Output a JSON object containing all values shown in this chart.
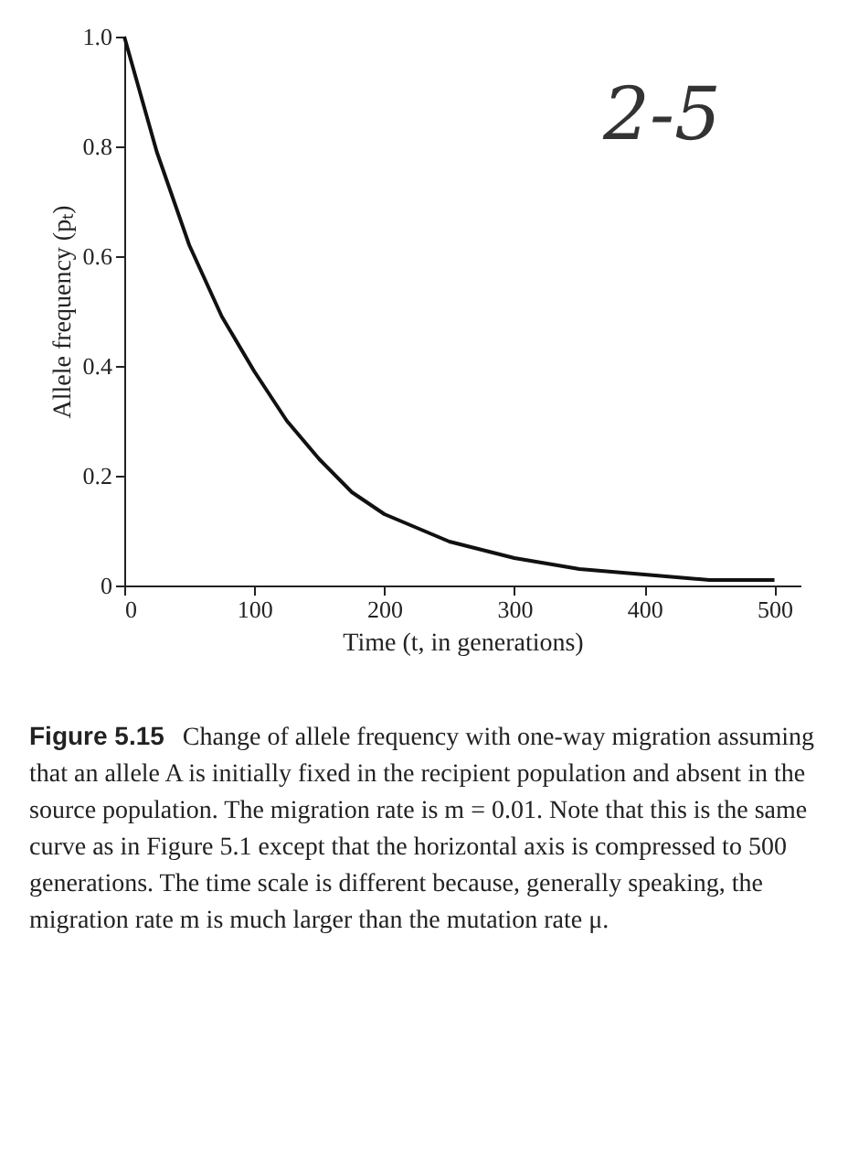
{
  "chart_data": {
    "type": "line",
    "xlabel": "Time (t, in generations)",
    "ylabel": "Allele frequency (pₜ)",
    "x": [
      0,
      25,
      50,
      75,
      100,
      125,
      150,
      175,
      200,
      250,
      300,
      350,
      400,
      450,
      500
    ],
    "series": [
      {
        "color": "#111111",
        "values": [
          1.0,
          0.79,
          0.62,
          0.49,
          0.39,
          0.3,
          0.23,
          0.17,
          0.13,
          0.08,
          0.05,
          0.03,
          0.02,
          0.01,
          0.01
        ]
      }
    ],
    "xlim": [
      0,
      520
    ],
    "xticks": [
      0,
      100,
      200,
      300,
      400,
      500
    ],
    "ylim": [
      0,
      1.0
    ],
    "yticks": [
      0,
      {
        "value": 0.2,
        "label": "0.2"
      },
      {
        "value": 0.4,
        "label": "0.4"
      },
      {
        "value": 0.6,
        "label": "0.6"
      },
      {
        "value": 0.8,
        "label": "0.8"
      },
      {
        "value": 1.0,
        "label": "1.0"
      }
    ],
    "grid": false,
    "marker": "none",
    "line_style": "solid",
    "annotations": [
      "Figure 5.15",
      "Change of allele frequency with one-way migration assuming that an allele A is initially fixed in the recipient population and absent in the source population. The migration rate is m = 0.01. Note that this is the same curve as in Figure 5.1 except that the horizontal axis is compressed to 500 generations. The time scale is different because, generally speaking, the migration rate m is much larger than the mutation rate μ.",
      "2-5"
    ]
  }
}
